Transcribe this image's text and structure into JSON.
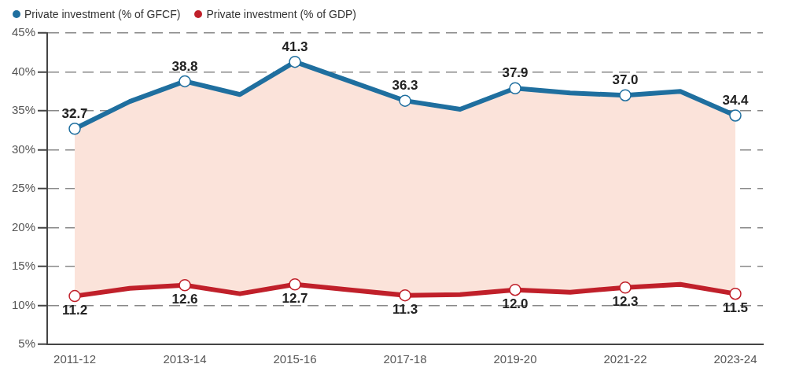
{
  "chart_data": {
    "type": "line",
    "categories": [
      "2011-12",
      null,
      "2013-14",
      null,
      "2015-16",
      null,
      "2017-18",
      null,
      "2019-20",
      null,
      "2021-22",
      null,
      "2023-24"
    ],
    "series": [
      {
        "name": "Private investment (% of GFCF)",
        "color": "#1f6f9f",
        "values": [
          32.7,
          36.2,
          38.8,
          37.1,
          41.3,
          38.8,
          36.3,
          35.2,
          37.9,
          37.3,
          37.0,
          37.5,
          34.4
        ],
        "value_labels": [
          "32.7",
          null,
          "38.8",
          null,
          "41.3",
          null,
          "36.3",
          null,
          "37.9",
          null,
          "37.0",
          null,
          "34.4"
        ],
        "lower": [
          11.2,
          12.2,
          12.6,
          11.5,
          12.7,
          12.0,
          11.3,
          11.4,
          12.0,
          11.7,
          12.3,
          12.7,
          11.5
        ],
        "upper": [
          32.7,
          36.2,
          38.8,
          37.1,
          41.3,
          38.8,
          36.3,
          35.2,
          37.9,
          37.3,
          37.0,
          37.5,
          34.4
        ]
      },
      {
        "name": "Private investment (% of GDP)",
        "color": "#c0202a",
        "values": [
          11.2,
          12.2,
          12.6,
          11.5,
          12.7,
          12.0,
          11.3,
          11.4,
          12.0,
          11.7,
          12.3,
          12.7,
          11.5
        ],
        "value_labels": [
          "11.2",
          null,
          "12.6",
          null,
          "12.7",
          null,
          "11.3",
          null,
          "12.0",
          null,
          "12.3",
          null,
          "11.5"
        ]
      }
    ],
    "ylim": [
      5,
      45
    ],
    "yticks": [
      {
        "value": 5,
        "label": "5%"
      },
      {
        "value": 10,
        "label": "10%"
      },
      {
        "value": 15,
        "label": "15%"
      },
      {
        "value": 20,
        "label": "20%"
      },
      {
        "value": 25,
        "label": "25%"
      },
      {
        "value": 30,
        "label": "30%"
      },
      {
        "value": 35,
        "label": "35%"
      },
      {
        "value": 40,
        "label": "40%"
      },
      {
        "value": 45,
        "label": "45%"
      }
    ],
    "grid": "y",
    "legend": "top left",
    "marker": "circle",
    "line_style": "solid"
  }
}
